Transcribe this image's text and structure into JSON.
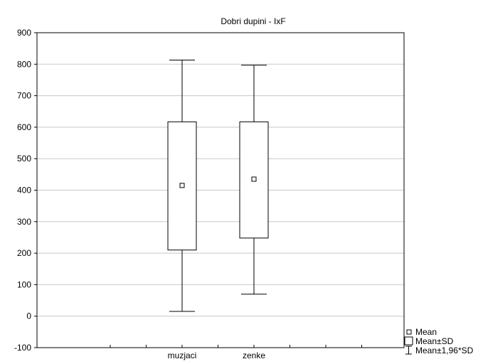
{
  "chart_data": {
    "type": "box",
    "title": "Dobri dupini - IxF",
    "xlabel": "",
    "ylabel": "",
    "ylim": [
      -100,
      900
    ],
    "yticks": [
      -100,
      0,
      100,
      200,
      300,
      400,
      500,
      600,
      700,
      800,
      900
    ],
    "grid": true,
    "legend_position": "bottom-right",
    "categories": [
      "muzjaci",
      "zenke"
    ],
    "series": [
      {
        "category": "muzjaci",
        "mean": 415,
        "mean_minus_sd": 210,
        "mean_plus_sd": 617,
        "mean_minus_196sd": 15,
        "mean_plus_196sd": 813
      },
      {
        "category": "zenke",
        "mean": 435,
        "mean_minus_sd": 248,
        "mean_plus_sd": 617,
        "mean_minus_196sd": 70,
        "mean_plus_196sd": 797
      }
    ],
    "legend": [
      {
        "symbol": "small-square",
        "label": "Mean"
      },
      {
        "symbol": "box",
        "label": "Mean±SD"
      },
      {
        "symbol": "whisker",
        "label": "Mean±1,96*SD"
      }
    ]
  }
}
